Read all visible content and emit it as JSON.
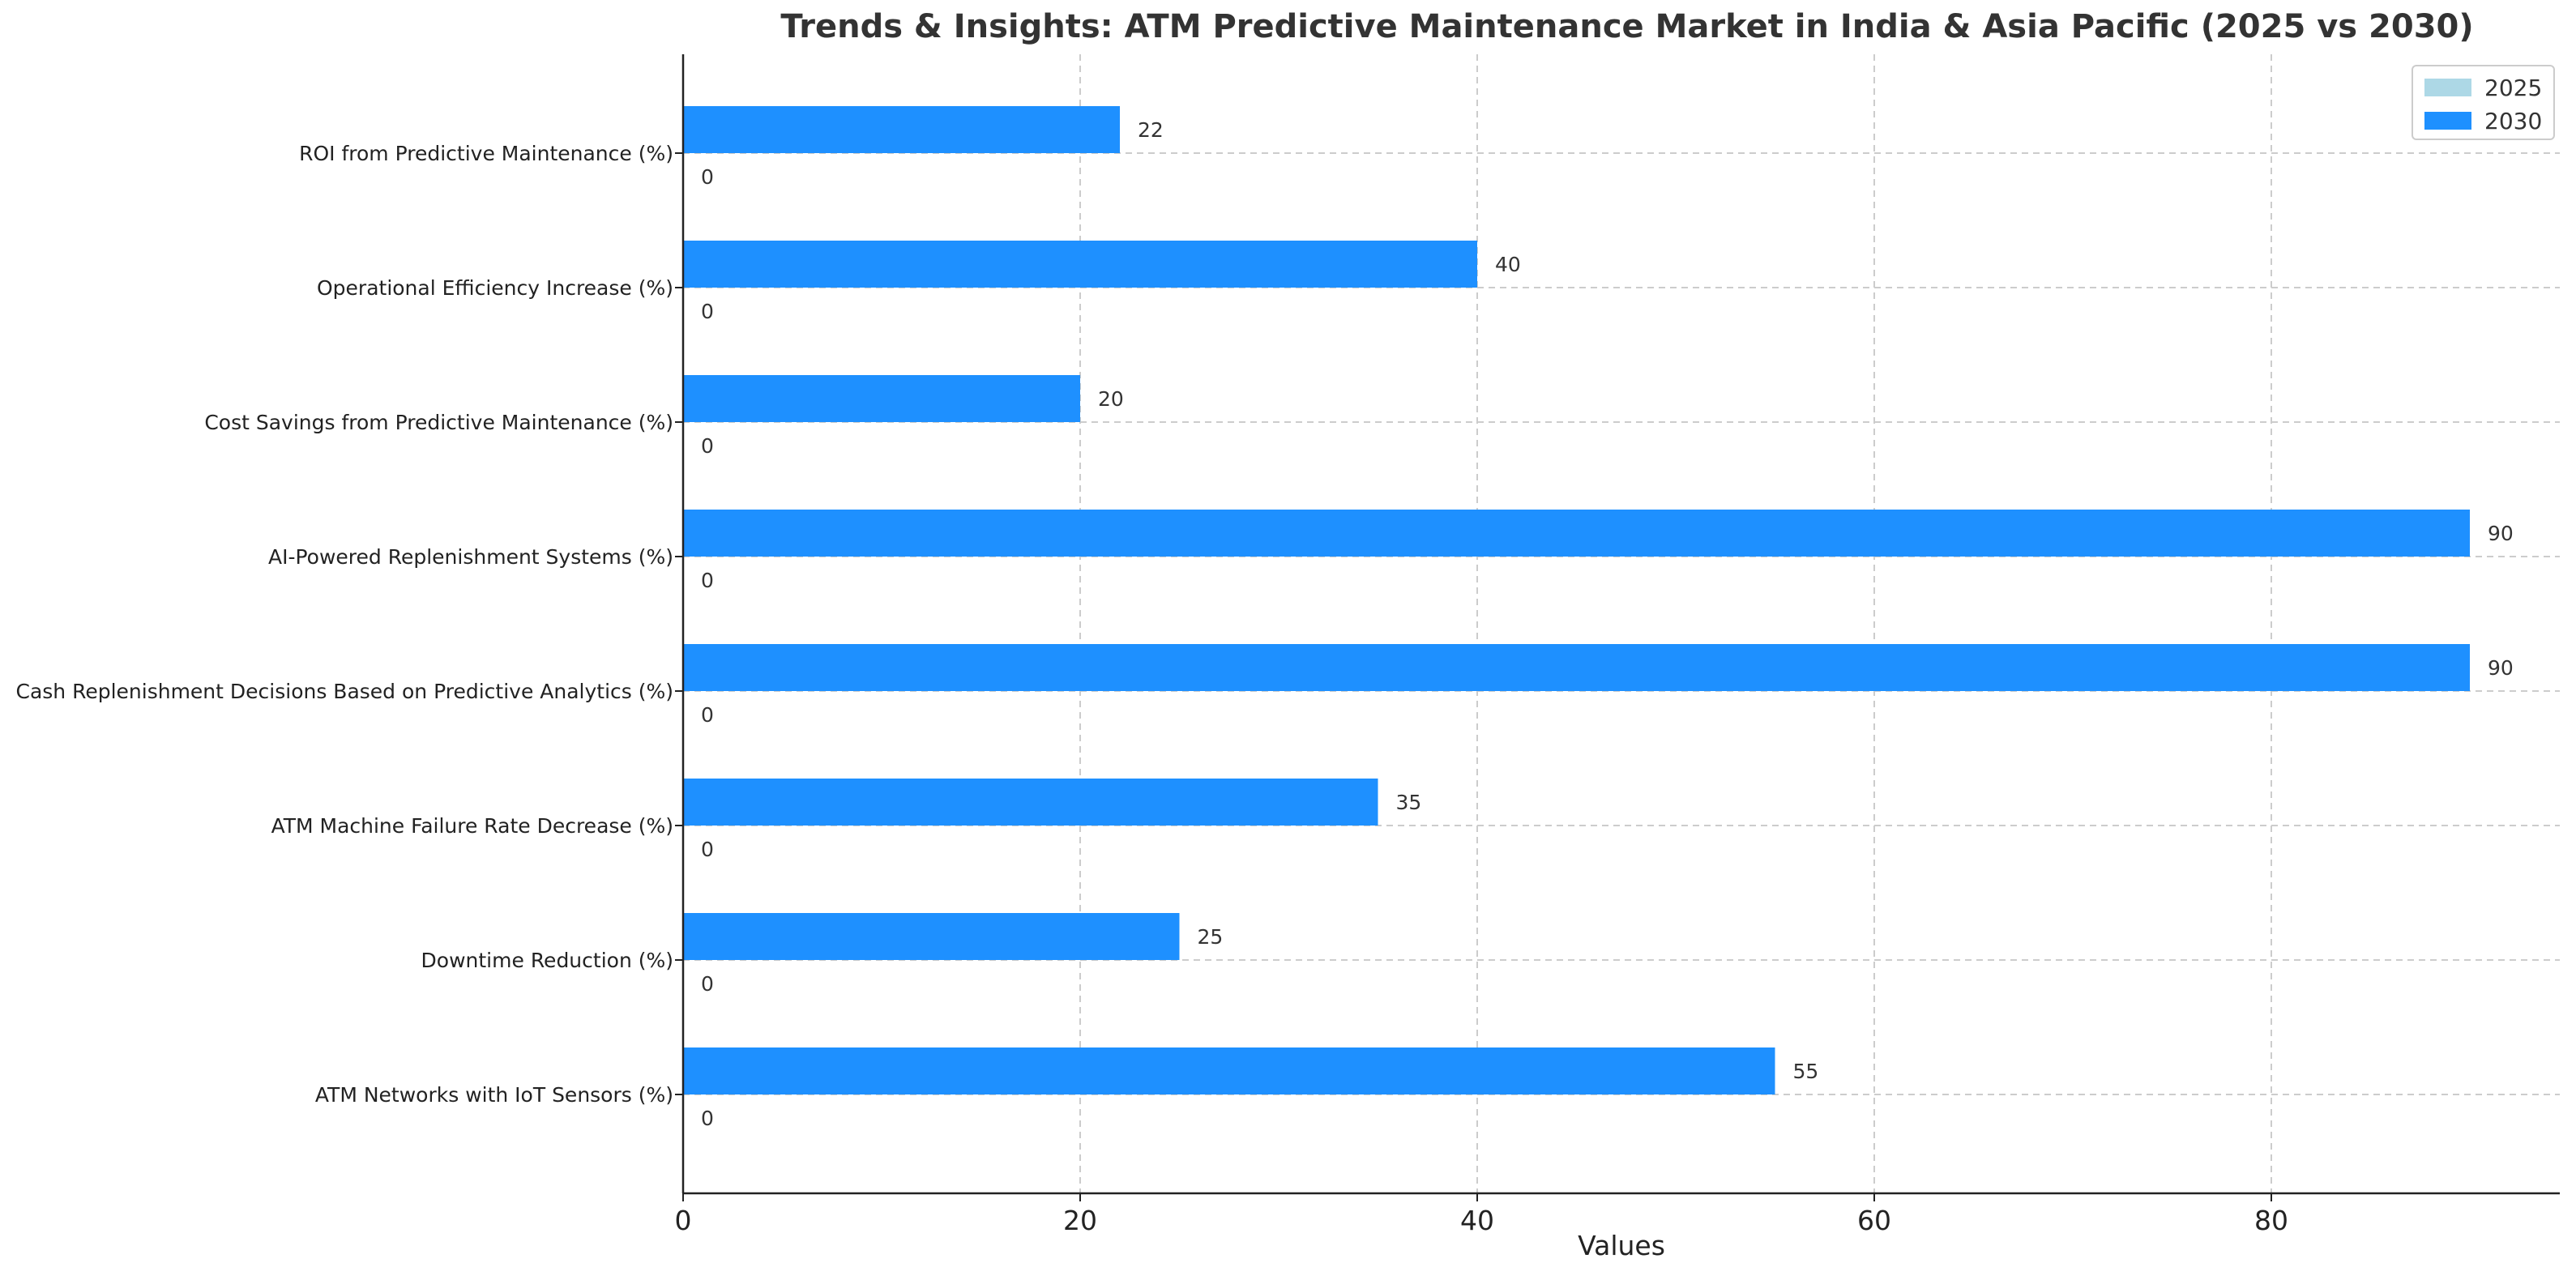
{
  "chart_data": {
    "type": "bar",
    "orientation": "horizontal",
    "title": "Trends & Insights: ATM Predictive Maintenance Market in India & Asia Pacific (2025 vs 2030)",
    "xlabel": "Values",
    "ylabel": "",
    "xlim": [
      0,
      94.5
    ],
    "x_ticks": [
      0,
      20,
      40,
      60,
      80
    ],
    "grid": true,
    "legend_position": "top-right",
    "categories": [
      "ATM Networks with IoT Sensors (%)",
      "Downtime Reduction (%)",
      "ATM Machine Failure Rate Decrease (%)",
      "Cash Replenishment Decisions Based on Predictive Analytics (%)",
      "AI-Powered Replenishment Systems (%)",
      "Cost Savings from Predictive Maintenance (%)",
      "Operational Efficiency Increase (%)",
      "ROI from Predictive Maintenance (%)"
    ],
    "series": [
      {
        "name": "2025",
        "color": "#add8e6",
        "values": [
          0,
          0,
          0,
          0,
          0,
          0,
          0,
          0
        ]
      },
      {
        "name": "2030",
        "color": "#1e90ff",
        "values": [
          55,
          25,
          35,
          90,
          90,
          20,
          40,
          22
        ]
      }
    ]
  }
}
